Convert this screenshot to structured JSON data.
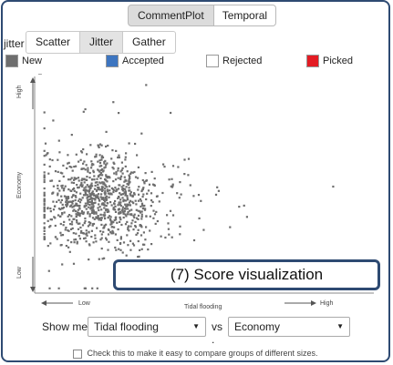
{
  "top_tabs": [
    {
      "label": "CommentPlot",
      "active": true
    },
    {
      "label": "Temporal",
      "active": false
    }
  ],
  "mode": {
    "label": "jitter",
    "tabs": [
      {
        "label": "Scatter",
        "active": false
      },
      {
        "label": "Jitter",
        "active": true
      },
      {
        "label": "Gather",
        "active": false
      }
    ]
  },
  "legend": [
    {
      "label": "New",
      "color": "#6e6e6e"
    },
    {
      "label": "Accepted",
      "color": "#3d75c0"
    },
    {
      "label": "Rejected",
      "color": "#ffffff"
    },
    {
      "label": "Picked",
      "color": "#e31b23"
    }
  ],
  "chart_data": {
    "type": "scatter",
    "xlabel": "Tidal flooding",
    "ylabel": "Economy",
    "x_low_label": "Low",
    "x_high_label": "High",
    "y_low_label": "Low",
    "y_high_label": "High",
    "y_minus_label": "–",
    "point_color": "#6e6e6e",
    "estimated_point_count": 1000,
    "distribution": {
      "center_x": 0.18,
      "center_y": 0.43,
      "spread_x": 0.085,
      "spread_y": 0.11
    }
  },
  "callout": {
    "text": "(7) Score visualization"
  },
  "controls": {
    "show_me_label": "Show me",
    "x_select": "Tidal flooding",
    "vs_label": "vs .",
    "y_select": "Economy",
    "checkbox_label": "Check this to make it easy to compare groups of different sizes."
  }
}
